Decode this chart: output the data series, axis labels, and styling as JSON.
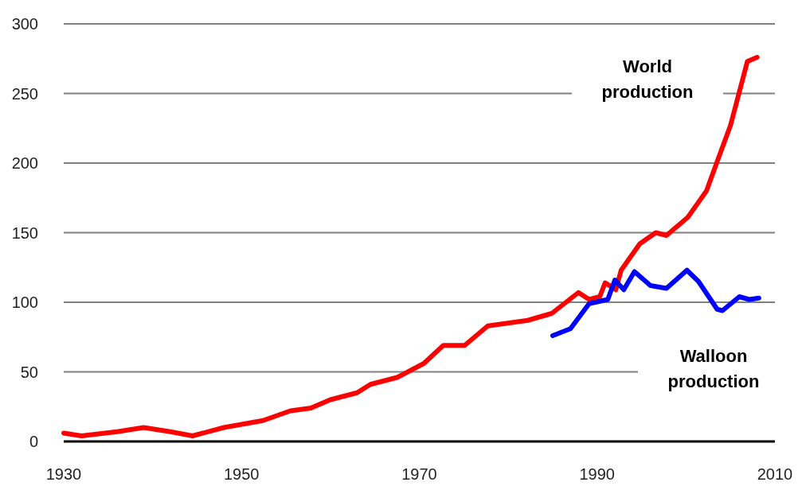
{
  "chart_data": {
    "type": "line",
    "xlim": [
      1930,
      2010
    ],
    "xticks": [
      1930,
      1950,
      1970,
      1990,
      2010
    ],
    "ylim": [
      0,
      300
    ],
    "yticks": [
      0,
      50,
      100,
      150,
      200,
      250,
      300
    ],
    "grid": "y",
    "legend": false,
    "series": [
      {
        "name": "World production",
        "color": "#ff0000",
        "x": [
          1930,
          1932,
          1936,
          1939,
          1942,
          1944.5,
          1948,
          1952.4,
          1955.5,
          1957.8,
          1960,
          1963,
          1964.5,
          1967.5,
          1970.5,
          1972.7,
          1975.1,
          1977.7,
          1982.2,
          1984.9,
          1987.9,
          1989.1,
          1990.3,
          1990.9,
          1992.1,
          1992.7,
          1994.8,
          1996.6,
          1997.8,
          2000.2,
          2002.3,
          2003.5,
          2005,
          2006.2,
          2006.9,
          2008
        ],
        "values": [
          6,
          4,
          7,
          10,
          7,
          4,
          10,
          15,
          22,
          24,
          30,
          35,
          41,
          46,
          56,
          69,
          69,
          83,
          87,
          92,
          107,
          102,
          104,
          114,
          109,
          123,
          142,
          150,
          148,
          161,
          180,
          201,
          227,
          256,
          273,
          276
        ]
      },
      {
        "name": "Walloon production",
        "color": "#0000ff",
        "x": [
          1985,
          1987,
          1989.1,
          1991.2,
          1992,
          1993,
          1994.2,
          1996,
          1997.8,
          2000.1,
          2001.4,
          2003.5,
          2004.1,
          2006,
          2007.1,
          2008.2
        ],
        "values": [
          76,
          81,
          99,
          102,
          116,
          109,
          122,
          112,
          110,
          123,
          115,
          95,
          94,
          104,
          102,
          103
        ]
      }
    ]
  }
}
